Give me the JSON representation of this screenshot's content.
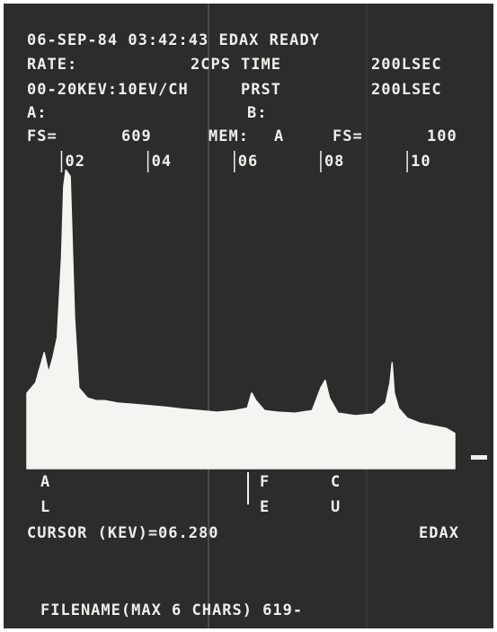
{
  "screen": {
    "header": "06-SEP-84 03:42:43 EDAX READY",
    "rate_label": "RATE:",
    "rate_value": "2CPS",
    "time_label": "TIME",
    "time_value": "200LSEC",
    "range": "00-20KEV:10EV/CH",
    "prst_label": "PRST",
    "prst_value": "200LSEC",
    "a_label": "A:",
    "b_label": "B:",
    "fs_a_label": "FS=",
    "fs_a_value": "609",
    "mem_label": "MEM:",
    "mem_value": "A",
    "fs_b_label": "FS=",
    "fs_b_value": "100",
    "markers": [
      [
        "A",
        "L"
      ],
      [
        "F",
        "E"
      ],
      [
        "C",
        "U"
      ]
    ],
    "cursor": "CURSOR (KEV)=06.280",
    "brand": "EDAX",
    "filename": "FILENAME(MAX 6 CHARS) 619-"
  },
  "chart_data": {
    "type": "area",
    "color": "#f4f4f0",
    "x": [
      1.2,
      1.4,
      1.5,
      1.6,
      1.7,
      1.8,
      1.9,
      2.0,
      2.05,
      2.1,
      2.2,
      2.3,
      2.4,
      2.6,
      2.8,
      3.0,
      3.3,
      3.6,
      4.0,
      4.4,
      4.8,
      5.2,
      5.6,
      6.0,
      6.3,
      6.4,
      6.5,
      6.7,
      7.0,
      7.4,
      7.8,
      8.0,
      8.1,
      8.2,
      8.4,
      8.8,
      9.2,
      9.5,
      9.6,
      9.65,
      9.7,
      9.8,
      10.0,
      10.3,
      10.9,
      11.1
    ],
    "values": [
      150,
      170,
      200,
      230,
      190,
      220,
      260,
      420,
      560,
      592,
      580,
      300,
      160,
      140,
      135,
      135,
      130,
      128,
      125,
      122,
      118,
      115,
      112,
      115,
      120,
      150,
      135,
      115,
      112,
      110,
      115,
      160,
      175,
      140,
      110,
      105,
      108,
      130,
      170,
      210,
      150,
      120,
      100,
      90,
      80,
      70
    ],
    "xlim": [
      1.2,
      11.1
    ],
    "ylim": [
      0,
      609
    ],
    "xticks": [
      {
        "value": 2,
        "label": "02"
      },
      {
        "value": 4,
        "label": "04"
      },
      {
        "value": 6,
        "label": "06"
      },
      {
        "value": 8,
        "label": "08"
      },
      {
        "value": 10,
        "label": "10"
      }
    ]
  }
}
